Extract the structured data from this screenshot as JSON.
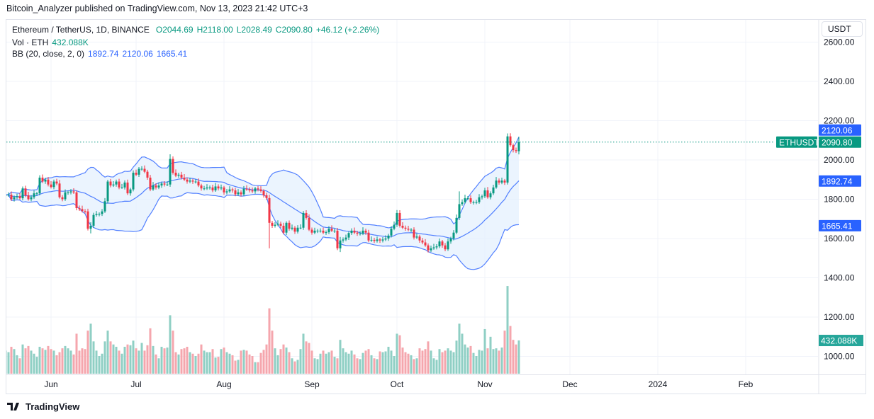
{
  "header": {
    "published": "Bitcoin_Analyzer published on TradingView.com, Nov 13, 2023 21:42 UTC+3"
  },
  "legend": {
    "symbol": "Ethereum / TetherUS, 1D, BINANCE",
    "open": "O2044.69",
    "high": "H2118.00",
    "low": "L2028.49",
    "close": "C2090.80",
    "change": "+46.12 (+2.26%)",
    "vol_label": "Vol · ETH",
    "vol_value": "432.088K",
    "bb_label": "BB (20, close, 2, 0)",
    "bb_basis": "1892.74",
    "bb_upper": "2120.06",
    "bb_lower": "1665.41"
  },
  "currency_button": "USDT",
  "price_labels": {
    "symbol_tag": "ETHUSDT",
    "last": "2090.80",
    "upper": "2120.06",
    "basis": "1892.74",
    "lower": "1665.41",
    "volume": "432.088K"
  },
  "branding": {
    "logo_text": "TradingView"
  },
  "colors": {
    "up": "#089981",
    "down": "#f23645",
    "up_vol": "#8fcfc4",
    "down_vol": "#f5a6ad",
    "bb_line": "#2962ff",
    "bb_fill": "#e3effd",
    "grid": "#f0f3fa",
    "axis_text": "#131722"
  },
  "chart_data": {
    "type": "candlestick",
    "symbol": "ETHUSDT",
    "interval": "1D",
    "start_date": "2023-05-16",
    "end_date": "2023-11-13",
    "y_ticks": [
      "2600.00",
      "2400.00",
      "2200.00",
      "2000.00",
      "1800.00",
      "1600.00",
      "1400.00",
      "1200.00",
      "1000.00"
    ],
    "y_tick_values": [
      2600,
      2400,
      2200,
      2000,
      1800,
      1600,
      1400,
      1200,
      1000
    ],
    "ylim": [
      960,
      2660
    ],
    "x_ticks": [
      {
        "label": "Jun",
        "date": "2023-06-01"
      },
      {
        "label": "Jul",
        "date": "2023-07-01"
      },
      {
        "label": "Aug",
        "date": "2023-08-01"
      },
      {
        "label": "Sep",
        "date": "2023-09-01"
      },
      {
        "label": "Oct",
        "date": "2023-10-01"
      },
      {
        "label": "Nov",
        "date": "2023-11-01"
      },
      {
        "label": "Dec",
        "date": "2023-12-01"
      },
      {
        "label": "2024",
        "date": "2024-01-01"
      },
      {
        "label": "Feb",
        "date": "2024-02-01"
      }
    ],
    "xlim": [
      "2023-05-16",
      "2024-02-28"
    ],
    "grid": true,
    "close": [
      1823,
      1823,
      1800,
      1810,
      1815,
      1805,
      1855,
      1820,
      1800,
      1810,
      1830,
      1830,
      1910,
      1890,
      1900,
      1875,
      1862,
      1890,
      1880,
      1810,
      1800,
      1835,
      1835,
      1840,
      1835,
      1755,
      1750,
      1740,
      1738,
      1650,
      1665,
      1720,
      1725,
      1725,
      1738,
      1790,
      1890,
      1870,
      1875,
      1890,
      1860,
      1860,
      1885,
      1830,
      1850,
      1935,
      1925,
      1955,
      1955,
      1940,
      1910,
      1850,
      1870,
      1860,
      1870,
      1880,
      1875,
      1875,
      2005,
      1935,
      1920,
      1925,
      1910,
      1900,
      1890,
      1895,
      1890,
      1890,
      1870,
      1855,
      1855,
      1860,
      1860,
      1845,
      1865,
      1855,
      1860,
      1835,
      1840,
      1850,
      1845,
      1825,
      1835,
      1825,
      1853,
      1850,
      1845,
      1840,
      1855,
      1850,
      1842,
      1820,
      1806,
      1680,
      1665,
      1670,
      1675,
      1665,
      1630,
      1680,
      1650,
      1655,
      1635,
      1655,
      1655,
      1730,
      1705,
      1645,
      1630,
      1640,
      1640,
      1640,
      1630,
      1632,
      1650,
      1640,
      1640,
      1550,
      1590,
      1595,
      1605,
      1628,
      1640,
      1630,
      1625,
      1625,
      1640,
      1630,
      1590,
      1593,
      1588,
      1595,
      1590,
      1595,
      1600,
      1615,
      1650,
      1670,
      1730,
      1665,
      1655,
      1650,
      1645,
      1645,
      1605,
      1610,
      1590,
      1580,
      1565,
      1540,
      1550,
      1555,
      1560,
      1585,
      1565,
      1545,
      1585,
      1600,
      1630,
      1705,
      1775,
      1785,
      1805,
      1805,
      1785,
      1785,
      1785,
      1810,
      1815,
      1845,
      1810,
      1830,
      1860,
      1895,
      1885,
      1895,
      1885,
      2120,
      2075,
      2050,
      2045,
      2090.8
    ],
    "volume_k": [
      300,
      280,
      350,
      320,
      240,
      200,
      380,
      330,
      360,
      300,
      260,
      220,
      350,
      330,
      310,
      360,
      320,
      300,
      240,
      280,
      330,
      360,
      330,
      300,
      250,
      520,
      300,
      330,
      320,
      560,
      650,
      420,
      300,
      230,
      260,
      420,
      560,
      420,
      380,
      350,
      300,
      260,
      350,
      380,
      370,
      430,
      330,
      300,
      400,
      300,
      370,
      590,
      360,
      250,
      200,
      350,
      330,
      340,
      760,
      560,
      280,
      250,
      320,
      330,
      350,
      280,
      260,
      230,
      260,
      380,
      300,
      280,
      280,
      320,
      210,
      220,
      320,
      340,
      280,
      260,
      240,
      170,
      180,
      300,
      310,
      300,
      250,
      230,
      150,
      150,
      270,
      310,
      380,
      850,
      560,
      330,
      240,
      320,
      380,
      340,
      280,
      200,
      160,
      180,
      320,
      520,
      420,
      400,
      300,
      200,
      190,
      260,
      300,
      260,
      280,
      300,
      220,
      200,
      440,
      330,
      280,
      260,
      300,
      250,
      200,
      190,
      270,
      300,
      320,
      240,
      200,
      190,
      290,
      280,
      290,
      350,
      300,
      230,
      520,
      500,
      340,
      280,
      260,
      240,
      190,
      200,
      330,
      300,
      320,
      420,
      300,
      200,
      180,
      320,
      280,
      300,
      330,
      300,
      280,
      430,
      650,
      520,
      380,
      340,
      360,
      270,
      230,
      310,
      300,
      580,
      330,
      480,
      320,
      330,
      300,
      340,
      560,
      1140,
      620,
      440,
      380,
      432.088
    ],
    "notable_extremes": {
      "2023-06-15": {
        "low": 1626
      },
      "2023-07-13": {
        "high": 2029
      },
      "2023-08-17": {
        "low": 1550
      },
      "2023-09-11": {
        "low": 1531
      },
      "2023-10-01": {
        "high": 1745
      },
      "2023-10-23": {
        "high": 1840
      },
      "2023-11-09": {
        "high": 2135
      },
      "2023-11-13": {
        "open": 2044.69,
        "high": 2118.0,
        "low": 2028.49
      }
    },
    "indicator": {
      "name": "BB",
      "length": 20,
      "source": "close",
      "stddev": 2,
      "last_basis": 1892.74,
      "last_upper": 2120.06,
      "last_lower": 1665.41
    }
  }
}
